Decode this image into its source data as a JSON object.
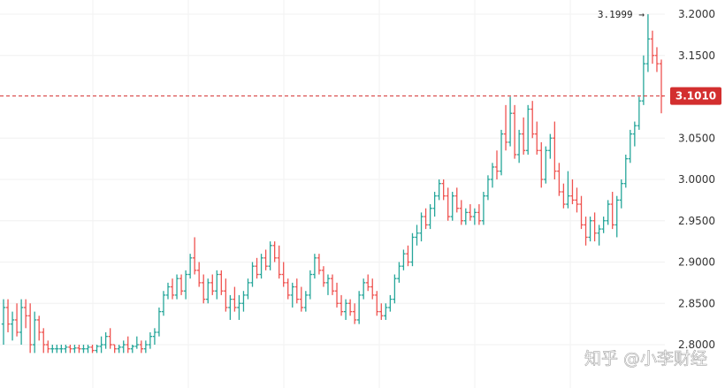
{
  "chart_data": {
    "type": "ohlc",
    "ylim": [
      2.79,
      3.215
    ],
    "y_ticks": [
      "3.2000",
      "3.1500",
      "3.0500",
      "3.0000",
      "2.9500",
      "2.9000",
      "2.8500",
      "2.8000"
    ],
    "y_tick_values": [
      3.2,
      3.15,
      3.05,
      3.0,
      2.95,
      2.9,
      2.85,
      2.8
    ],
    "current_price": {
      "label": "3.1010",
      "value": 3.101,
      "color": "#d32f2f"
    },
    "high_marker": {
      "label": "3.1999 →",
      "value": 3.1999
    },
    "colors": {
      "up": "#26a69a",
      "down": "#ef5350"
    },
    "series": [
      [
        2.825,
        2.855,
        2.8,
        2.845
      ],
      [
        2.845,
        2.855,
        2.815,
        2.825
      ],
      [
        2.825,
        2.84,
        2.805,
        2.83
      ],
      [
        2.83,
        2.85,
        2.81,
        2.815
      ],
      [
        2.815,
        2.855,
        2.8,
        2.845
      ],
      [
        2.845,
        2.855,
        2.82,
        2.835
      ],
      [
        2.835,
        2.85,
        2.79,
        2.8
      ],
      [
        2.8,
        2.84,
        2.79,
        2.83
      ],
      [
        2.83,
        2.835,
        2.805,
        2.815
      ],
      [
        2.815,
        2.82,
        2.79,
        2.8
      ],
      [
        2.8,
        2.805,
        2.79,
        2.795
      ],
      [
        2.795,
        2.8,
        2.79,
        2.795
      ],
      [
        2.795,
        2.8,
        2.79,
        2.795
      ],
      [
        2.795,
        2.8,
        2.79,
        2.795
      ],
      [
        2.795,
        2.8,
        2.79,
        2.797
      ],
      [
        2.797,
        2.8,
        2.79,
        2.795
      ],
      [
        2.795,
        2.8,
        2.79,
        2.796
      ],
      [
        2.796,
        2.8,
        2.79,
        2.795
      ],
      [
        2.795,
        2.8,
        2.79,
        2.795
      ],
      [
        2.795,
        2.8,
        2.79,
        2.797
      ],
      [
        2.797,
        2.8,
        2.79,
        2.793
      ],
      [
        2.793,
        2.8,
        2.79,
        2.798
      ],
      [
        2.798,
        2.81,
        2.79,
        2.8
      ],
      [
        2.8,
        2.815,
        2.795,
        2.81
      ],
      [
        2.81,
        2.82,
        2.795,
        2.8
      ],
      [
        2.8,
        2.8,
        2.79,
        2.795
      ],
      [
        2.795,
        2.8,
        2.79,
        2.797
      ],
      [
        2.797,
        2.805,
        2.79,
        2.8
      ],
      [
        2.8,
        2.81,
        2.79,
        2.795
      ],
      [
        2.795,
        2.8,
        2.79,
        2.798
      ],
      [
        2.798,
        2.81,
        2.795,
        2.8
      ],
      [
        2.8,
        2.805,
        2.79,
        2.795
      ],
      [
        2.795,
        2.805,
        2.79,
        2.8
      ],
      [
        2.8,
        2.815,
        2.795,
        2.81
      ],
      [
        2.81,
        2.82,
        2.8,
        2.815
      ],
      [
        2.815,
        2.845,
        2.81,
        2.84
      ],
      [
        2.84,
        2.865,
        2.835,
        2.86
      ],
      [
        2.86,
        2.875,
        2.855,
        2.87
      ],
      [
        2.87,
        2.88,
        2.855,
        2.86
      ],
      [
        2.86,
        2.885,
        2.855,
        2.88
      ],
      [
        2.88,
        2.885,
        2.86,
        2.865
      ],
      [
        2.865,
        2.89,
        2.855,
        2.885
      ],
      [
        2.885,
        2.91,
        2.88,
        2.905
      ],
      [
        2.905,
        2.93,
        2.885,
        2.89
      ],
      [
        2.89,
        2.9,
        2.87,
        2.875
      ],
      [
        2.875,
        2.885,
        2.85,
        2.855
      ],
      [
        2.855,
        2.88,
        2.85,
        2.875
      ],
      [
        2.875,
        2.885,
        2.86,
        2.865
      ],
      [
        2.865,
        2.89,
        2.855,
        2.885
      ],
      [
        2.885,
        2.89,
        2.86,
        2.865
      ],
      [
        2.865,
        2.88,
        2.84,
        2.845
      ],
      [
        2.845,
        2.86,
        2.83,
        2.855
      ],
      [
        2.855,
        2.87,
        2.84,
        2.845
      ],
      [
        2.845,
        2.86,
        2.83,
        2.85
      ],
      [
        2.85,
        2.865,
        2.84,
        2.86
      ],
      [
        2.86,
        2.88,
        2.855,
        2.875
      ],
      [
        2.875,
        2.9,
        2.87,
        2.895
      ],
      [
        2.895,
        2.905,
        2.88,
        2.885
      ],
      [
        2.885,
        2.91,
        2.88,
        2.905
      ],
      [
        2.905,
        2.915,
        2.89,
        2.895
      ],
      [
        2.895,
        2.925,
        2.89,
        2.92
      ],
      [
        2.92,
        2.925,
        2.9,
        2.905
      ],
      [
        2.905,
        2.92,
        2.88,
        2.885
      ],
      [
        2.885,
        2.9,
        2.87,
        2.875
      ],
      [
        2.875,
        2.88,
        2.855,
        2.86
      ],
      [
        2.86,
        2.875,
        2.845,
        2.87
      ],
      [
        2.87,
        2.88,
        2.85,
        2.855
      ],
      [
        2.855,
        2.87,
        2.84,
        2.845
      ],
      [
        2.845,
        2.865,
        2.84,
        2.86
      ],
      [
        2.86,
        2.89,
        2.855,
        2.885
      ],
      [
        2.885,
        2.91,
        2.88,
        2.905
      ],
      [
        2.905,
        2.91,
        2.885,
        2.89
      ],
      [
        2.89,
        2.895,
        2.87,
        2.875
      ],
      [
        2.875,
        2.885,
        2.86,
        2.88
      ],
      [
        2.88,
        2.885,
        2.86,
        2.865
      ],
      [
        2.865,
        2.875,
        2.845,
        2.85
      ],
      [
        2.85,
        2.86,
        2.835,
        2.84
      ],
      [
        2.84,
        2.855,
        2.83,
        2.85
      ],
      [
        2.85,
        2.855,
        2.835,
        2.84
      ],
      [
        2.84,
        2.85,
        2.825,
        2.83
      ],
      [
        2.83,
        2.865,
        2.825,
        2.86
      ],
      [
        2.86,
        2.88,
        2.855,
        2.875
      ],
      [
        2.875,
        2.885,
        2.865,
        2.87
      ],
      [
        2.87,
        2.88,
        2.855,
        2.86
      ],
      [
        2.86,
        2.865,
        2.835,
        2.84
      ],
      [
        2.84,
        2.85,
        2.83,
        2.835
      ],
      [
        2.835,
        2.85,
        2.83,
        2.845
      ],
      [
        2.845,
        2.86,
        2.84,
        2.855
      ],
      [
        2.855,
        2.885,
        2.85,
        2.88
      ],
      [
        2.88,
        2.9,
        2.875,
        2.895
      ],
      [
        2.895,
        2.915,
        2.89,
        2.91
      ],
      [
        2.91,
        2.92,
        2.895,
        2.9
      ],
      [
        2.9,
        2.935,
        2.895,
        2.93
      ],
      [
        2.93,
        2.945,
        2.92,
        2.935
      ],
      [
        2.935,
        2.96,
        2.925,
        2.955
      ],
      [
        2.955,
        2.965,
        2.94,
        2.945
      ],
      [
        2.945,
        2.97,
        2.94,
        2.965
      ],
      [
        2.965,
        2.985,
        2.955,
        2.98
      ],
      [
        2.98,
        3.0,
        2.975,
        2.995
      ],
      [
        2.995,
        3.0,
        2.975,
        2.98
      ],
      [
        2.98,
        2.99,
        2.95,
        2.955
      ],
      [
        2.955,
        2.985,
        2.95,
        2.98
      ],
      [
        2.98,
        2.99,
        2.96,
        2.965
      ],
      [
        2.965,
        2.975,
        2.945,
        2.95
      ],
      [
        2.95,
        2.965,
        2.945,
        2.96
      ],
      [
        2.96,
        2.97,
        2.95,
        2.955
      ],
      [
        2.955,
        2.965,
        2.945,
        2.96
      ],
      [
        2.96,
        2.97,
        2.945,
        2.95
      ],
      [
        2.95,
        2.985,
        2.945,
        2.98
      ],
      [
        2.98,
        3.005,
        2.975,
        3.0
      ],
      [
        3.0,
        3.02,
        2.99,
        3.015
      ],
      [
        3.015,
        3.035,
        3.0,
        3.01
      ],
      [
        3.01,
        3.06,
        3.005,
        3.055
      ],
      [
        3.055,
        3.09,
        3.035,
        3.045
      ],
      [
        3.045,
        3.1,
        3.04,
        3.08
      ],
      [
        3.08,
        3.09,
        3.025,
        3.03
      ],
      [
        3.03,
        3.06,
        3.02,
        3.055
      ],
      [
        3.055,
        3.075,
        3.03,
        3.035
      ],
      [
        3.035,
        3.09,
        3.03,
        3.085
      ],
      [
        3.085,
        3.095,
        3.05,
        3.055
      ],
      [
        3.055,
        3.07,
        3.03,
        3.035
      ],
      [
        3.035,
        3.045,
        2.99,
        3.0
      ],
      [
        3.0,
        3.04,
        2.995,
        3.035
      ],
      [
        3.035,
        3.055,
        3.025,
        3.05
      ],
      [
        3.05,
        3.07,
        3.0,
        3.01
      ],
      [
        3.01,
        3.02,
        2.98,
        2.985
      ],
      [
        2.985,
        2.995,
        2.965,
        2.97
      ],
      [
        2.97,
        3.01,
        2.965,
        2.98
      ],
      [
        2.98,
        3.0,
        2.97,
        2.975
      ],
      [
        2.975,
        2.99,
        2.96,
        2.97
      ],
      [
        2.97,
        2.98,
        2.94,
        2.945
      ],
      [
        2.945,
        2.955,
        2.92,
        2.93
      ],
      [
        2.93,
        2.955,
        2.925,
        2.95
      ],
      [
        2.95,
        2.96,
        2.925,
        2.935
      ],
      [
        2.935,
        2.945,
        2.92,
        2.94
      ],
      [
        2.94,
        2.955,
        2.935,
        2.95
      ],
      [
        2.95,
        2.975,
        2.945,
        2.97
      ],
      [
        2.97,
        2.985,
        2.94,
        2.945
      ],
      [
        2.945,
        2.98,
        2.93,
        2.975
      ],
      [
        2.975,
        3.0,
        2.965,
        2.995
      ],
      [
        2.995,
        3.03,
        2.99,
        3.025
      ],
      [
        3.025,
        3.06,
        3.02,
        3.055
      ],
      [
        3.055,
        3.07,
        3.04,
        3.065
      ],
      [
        3.065,
        3.1,
        3.06,
        3.095
      ],
      [
        3.095,
        3.15,
        3.09,
        3.14
      ],
      [
        3.14,
        3.1999,
        3.13,
        3.17
      ],
      [
        3.17,
        3.18,
        3.14,
        3.15
      ],
      [
        3.15,
        3.16,
        3.13,
        3.14
      ],
      [
        3.14,
        3.145,
        3.08,
        3.101
      ]
    ]
  },
  "watermark": {
    "text": "知乎 @小李财经"
  }
}
